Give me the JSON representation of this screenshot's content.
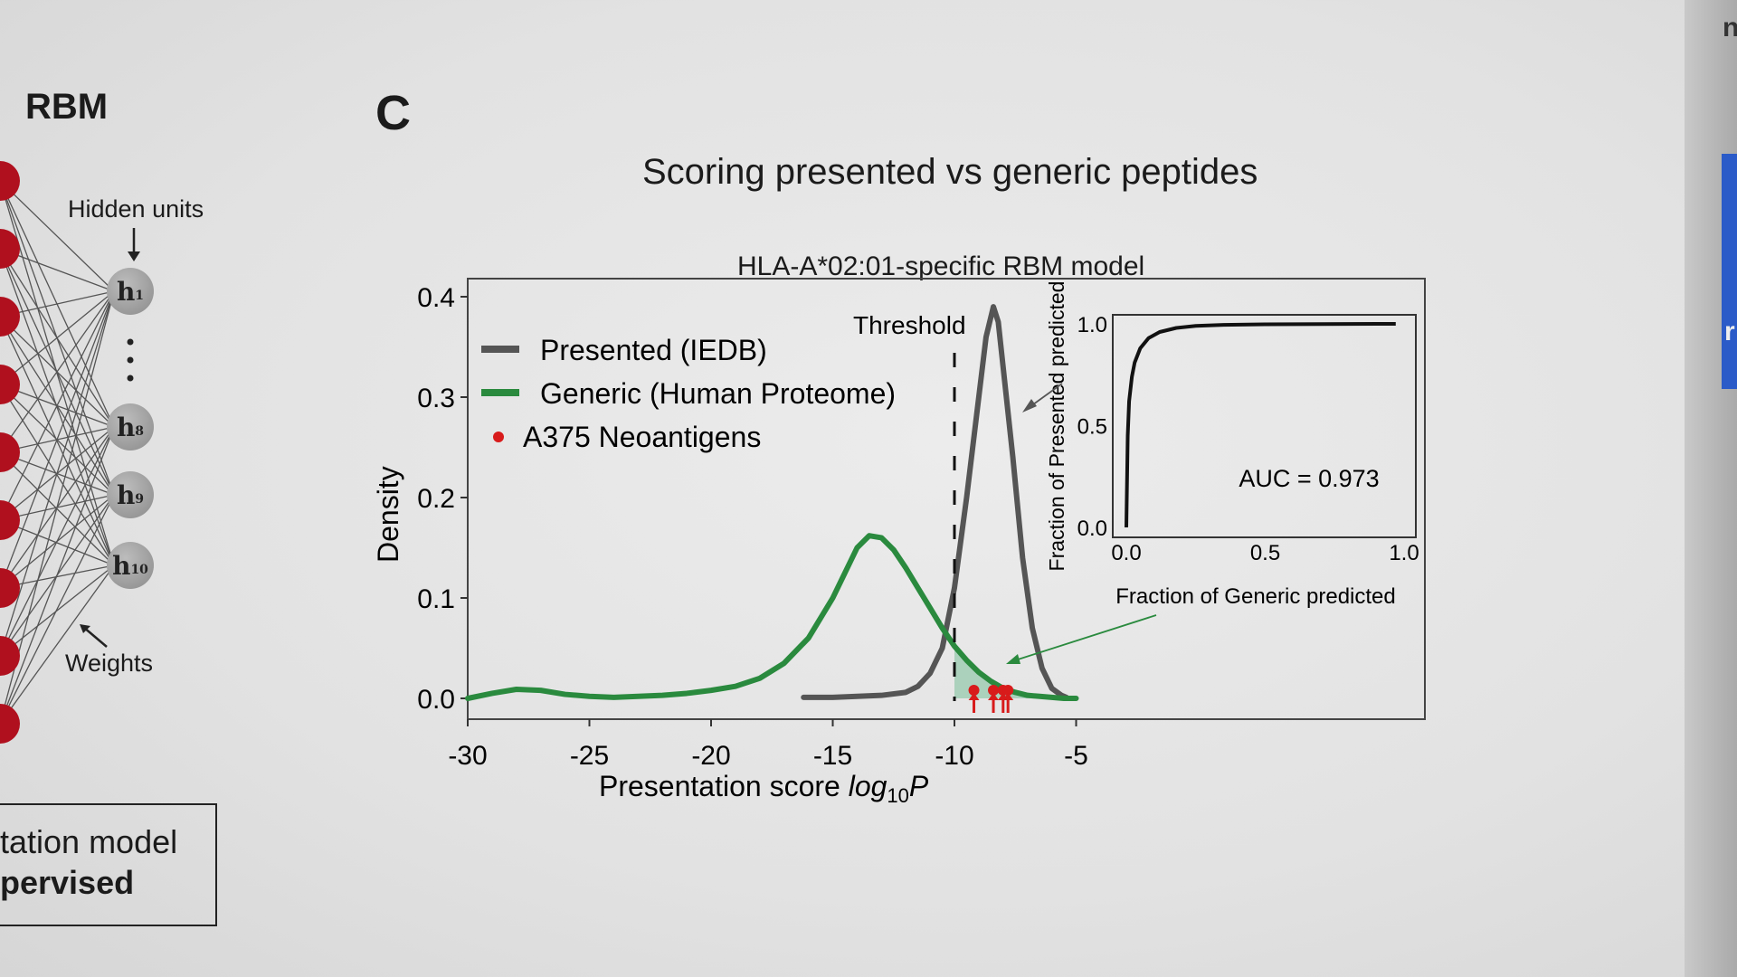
{
  "left_panel": {
    "title": "RBM",
    "hidden_label": "Hidden units",
    "weights_label": "Weights",
    "hidden_units": [
      {
        "letter": "h",
        "index": "1"
      },
      {
        "letter": "h",
        "index": "8"
      },
      {
        "letter": "h",
        "index": "9"
      },
      {
        "letter": "h",
        "index": "10"
      }
    ],
    "box_line1": "tation model",
    "box_line2": "pervised",
    "visible_unit_color": "#b0101e"
  },
  "panel_label": "C",
  "main_title": "Scoring presented vs generic peptides",
  "chart_data": [
    {
      "type": "line",
      "title": "HLA-A*02:01-specific RBM model",
      "xlabel": "Presentation score log10P",
      "ylabel": "Density",
      "xlim": [
        -30,
        -3
      ],
      "ylim": [
        0,
        0.4
      ],
      "xticks": [
        -30,
        -25,
        -20,
        -15,
        -10,
        -5
      ],
      "yticks": [
        0.0,
        0.1,
        0.2,
        0.3,
        0.4
      ],
      "xtick_labels": [
        "-30",
        "-25",
        "-20",
        "-15",
        "-10",
        "-5"
      ],
      "ytick_labels": [
        "0.0",
        "0.1",
        "0.2",
        "0.3",
        "0.4"
      ],
      "threshold": {
        "x": -10,
        "label": "Threshold"
      },
      "legend_position": "top-left",
      "series": [
        {
          "name": "Presented (IEDB)",
          "color": "#555555",
          "x": [
            -16.2,
            -15,
            -14,
            -13,
            -12,
            -11.5,
            -11,
            -10.5,
            -10,
            -9.5,
            -9,
            -8.7,
            -8.4,
            -8.2,
            -8,
            -7.6,
            -7.2,
            -6.8,
            -6.4,
            -6,
            -5.6,
            -5.4
          ],
          "y": [
            0.001,
            0.001,
            0.002,
            0.003,
            0.006,
            0.012,
            0.025,
            0.05,
            0.11,
            0.2,
            0.3,
            0.36,
            0.39,
            0.375,
            0.33,
            0.24,
            0.14,
            0.07,
            0.03,
            0.01,
            0.003,
            0.001
          ]
        },
        {
          "name": "Generic (Human Proteome)",
          "color": "#2a8a3e",
          "x": [
            -30,
            -29,
            -28,
            -27,
            -26,
            -25,
            -24,
            -23,
            -22,
            -21,
            -20,
            -19,
            -18,
            -17,
            -16,
            -15,
            -14.5,
            -14,
            -13.5,
            -13,
            -12.5,
            -12,
            -11.5,
            -11,
            -10.5,
            -10,
            -9.5,
            -9,
            -8.5,
            -8,
            -7.5,
            -7,
            -6.5,
            -6,
            -5.5,
            -5
          ],
          "y": [
            0.0,
            0.005,
            0.009,
            0.008,
            0.004,
            0.002,
            0.001,
            0.002,
            0.003,
            0.005,
            0.008,
            0.012,
            0.02,
            0.035,
            0.06,
            0.1,
            0.125,
            0.15,
            0.162,
            0.16,
            0.148,
            0.13,
            0.11,
            0.09,
            0.07,
            0.052,
            0.038,
            0.026,
            0.017,
            0.01,
            0.006,
            0.003,
            0.002,
            0.001,
            0.0,
            0.0
          ]
        }
      ],
      "neoantigens": {
        "name": "A375 Neoantigens",
        "color": "#d81b1b",
        "x": [
          -9.2,
          -8.4,
          -8.0,
          -7.8
        ],
        "y": [
          0,
          0,
          0,
          0
        ]
      }
    },
    {
      "type": "line",
      "title": "",
      "xlabel": "Fraction of Generic predicted",
      "ylabel": "Fraction of Presented predicted",
      "xlim": [
        0,
        1
      ],
      "ylim": [
        0,
        1
      ],
      "xtick_labels": [
        "0.0",
        "0.5",
        "1.0"
      ],
      "ytick_labels": [
        "0.0",
        "0.5",
        "1.0"
      ],
      "annotation": "AUC = 0.973",
      "series": [
        {
          "name": "",
          "color": "#111111",
          "x": [
            0.0,
            0.005,
            0.01,
            0.02,
            0.03,
            0.05,
            0.08,
            0.12,
            0.18,
            0.25,
            0.35,
            0.5,
            0.7,
            0.9,
            0.97
          ],
          "y": [
            0.0,
            0.45,
            0.62,
            0.74,
            0.81,
            0.88,
            0.93,
            0.96,
            0.98,
            0.99,
            0.995,
            0.998,
            0.999,
            1.0,
            1.0
          ]
        }
      ]
    }
  ]
}
